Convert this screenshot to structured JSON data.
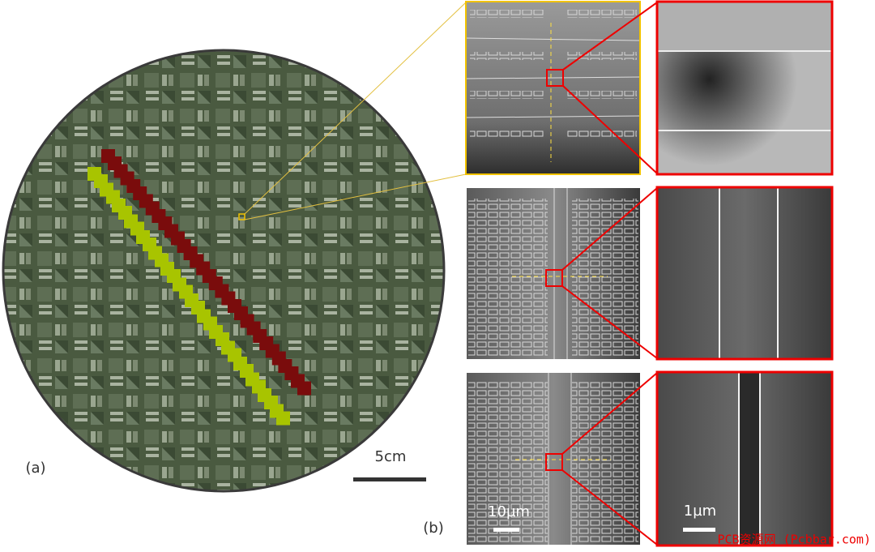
{
  "panel_a": {
    "label": "(a)",
    "scale_bar": "5cm"
  },
  "panel_b": {
    "label": "(b)",
    "scale_bar_low": "10µm",
    "scale_bar_high": "1µm"
  },
  "watermark": "PCB资源网 (Pcbbar.com)"
}
